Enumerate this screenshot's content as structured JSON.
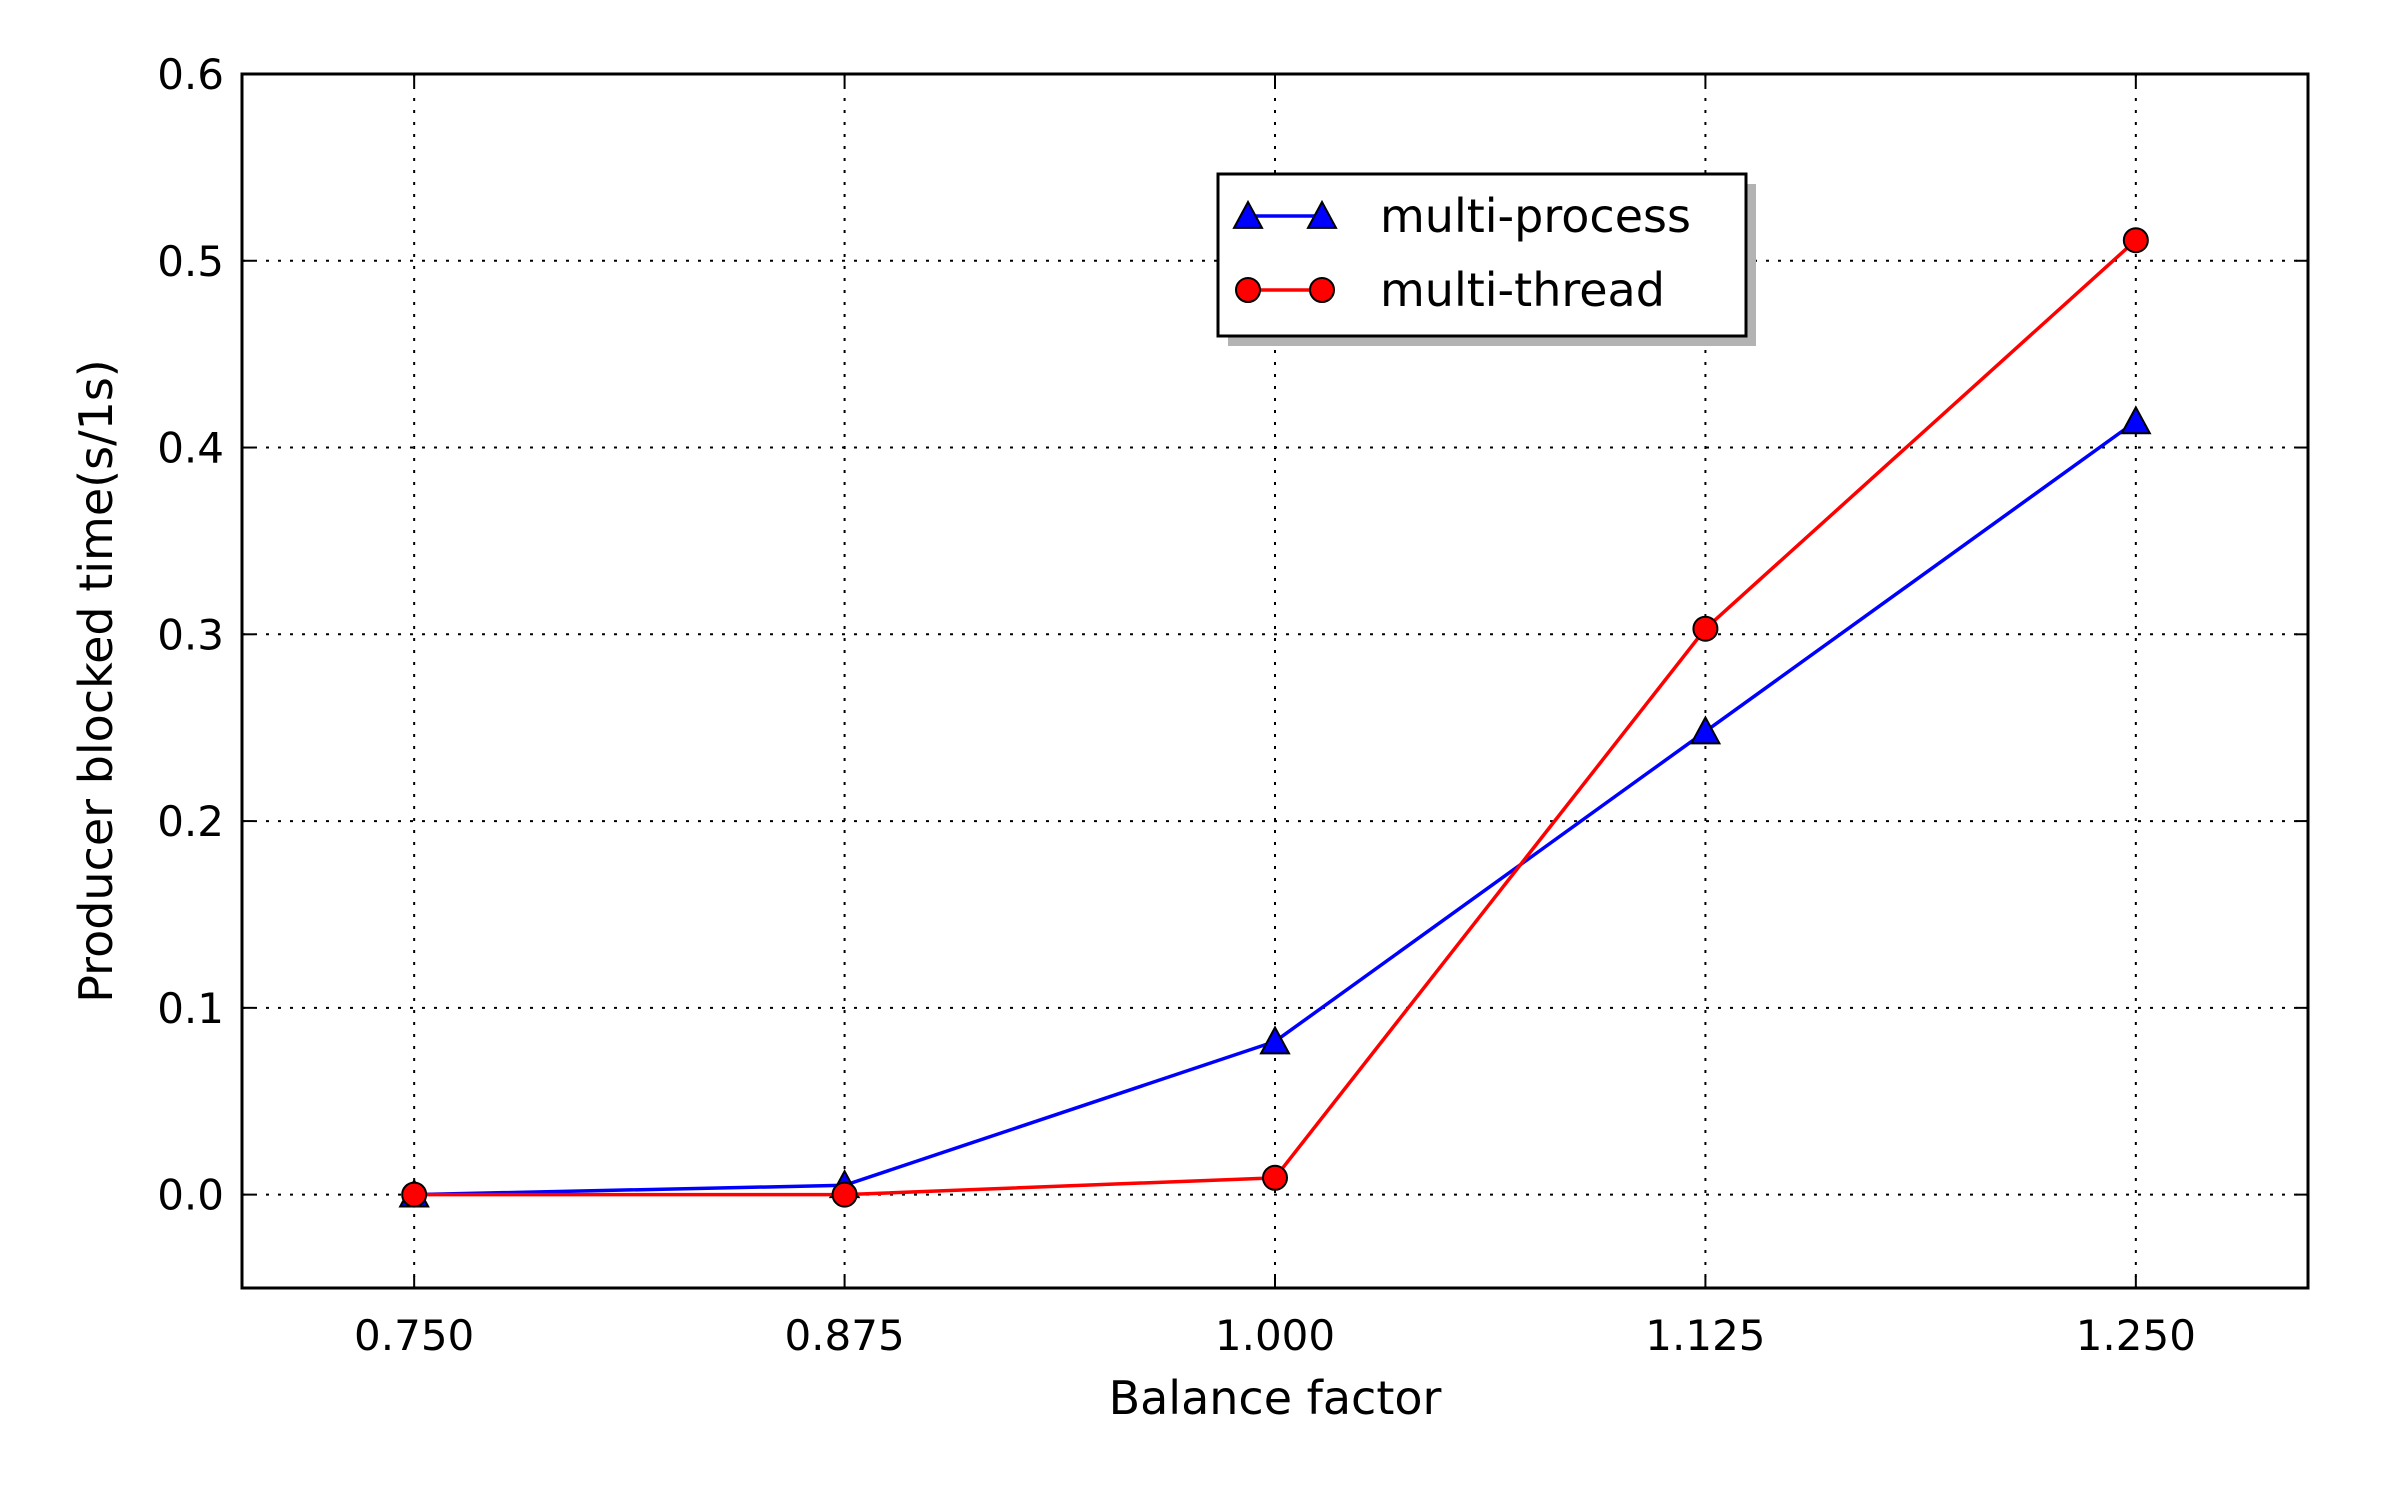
{
  "chart_data": {
    "type": "line",
    "title": "",
    "xlabel": "Balance factor",
    "ylabel": "Producer blocked time(s/1s)",
    "x": [
      0.75,
      0.875,
      1.0,
      1.125,
      1.25
    ],
    "xticks": [
      "0.750",
      "0.875",
      "1.000",
      "1.125",
      "1.250"
    ],
    "yticks": [
      "0.0",
      "0.1",
      "0.2",
      "0.3",
      "0.4",
      "0.5",
      "0.6"
    ],
    "xlim": [
      0.7,
      1.3
    ],
    "ylim": [
      -0.05,
      0.6
    ],
    "grid": true,
    "legend_position": "upper center",
    "series": [
      {
        "name": "multi-process",
        "marker": "triangle",
        "color": "#0000ff",
        "values": [
          0.0,
          0.005,
          0.082,
          0.248,
          0.414
        ]
      },
      {
        "name": "multi-thread",
        "marker": "circle",
        "color": "#ff0000",
        "values": [
          0.0,
          0.0,
          0.009,
          0.303,
          0.511
        ]
      }
    ]
  }
}
